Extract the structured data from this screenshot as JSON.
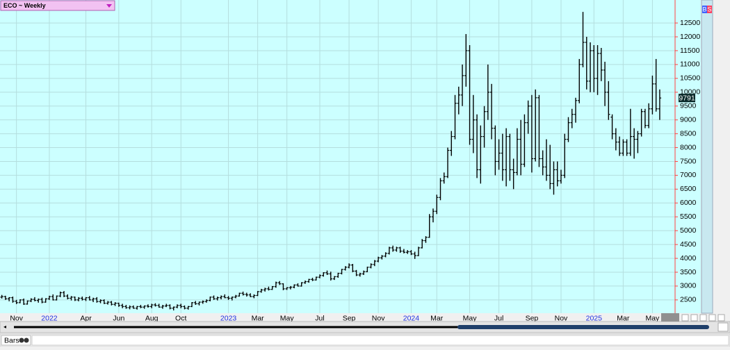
{
  "chart_data": {
    "type": "ohlc",
    "title": "ECO ~ Weekly",
    "color": "#000000",
    "grid": true,
    "ylim": [
      2020,
      13330
    ],
    "yticks": [
      2500,
      3000,
      3500,
      4000,
      4500,
      5000,
      5500,
      6000,
      6500,
      7000,
      7500,
      8000,
      8500,
      9000,
      9500,
      10000,
      10500,
      11000,
      11500,
      12000,
      12500
    ],
    "xlim": [
      -0.5,
      184.2
    ],
    "xticks": [
      {
        "value": 4,
        "label": "Nov"
      },
      {
        "value": 13,
        "label": "2022"
      },
      {
        "value": 23,
        "label": "Apr"
      },
      {
        "value": 32,
        "label": "Jun"
      },
      {
        "value": 41,
        "label": "Aug"
      },
      {
        "value": 49,
        "label": "Oct"
      },
      {
        "value": 62,
        "label": "2023"
      },
      {
        "value": 70,
        "label": "Mar"
      },
      {
        "value": 78,
        "label": "May"
      },
      {
        "value": 87,
        "label": "Jul"
      },
      {
        "value": 95,
        "label": "Sep"
      },
      {
        "value": 103,
        "label": "Nov"
      },
      {
        "value": 112,
        "label": "2024"
      },
      {
        "value": 119,
        "label": "Mar"
      },
      {
        "value": 128,
        "label": "May"
      },
      {
        "value": 136,
        "label": "Jul"
      },
      {
        "value": 145,
        "label": "Sep"
      },
      {
        "value": 153,
        "label": "Nov"
      },
      {
        "value": 162,
        "label": "2025"
      },
      {
        "value": 170,
        "label": "Mar"
      },
      {
        "value": 178,
        "label": "May"
      }
    ],
    "last_price": 9791,
    "ohlc": [
      [
        2600,
        2680,
        2550,
        2620
      ],
      [
        2620,
        2650,
        2500,
        2540
      ],
      [
        2540,
        2600,
        2450,
        2580
      ],
      [
        2580,
        2620,
        2400,
        2450
      ],
      [
        2450,
        2500,
        2350,
        2400
      ],
      [
        2400,
        2520,
        2380,
        2500
      ],
      [
        2500,
        2550,
        2320,
        2350
      ],
      [
        2350,
        2480,
        2330,
        2460
      ],
      [
        2460,
        2560,
        2420,
        2520
      ],
      [
        2520,
        2600,
        2450,
        2480
      ],
      [
        2480,
        2550,
        2400,
        2520
      ],
      [
        2520,
        2580,
        2380,
        2420
      ],
      [
        2420,
        2560,
        2400,
        2540
      ],
      [
        2540,
        2650,
        2500,
        2620
      ],
      [
        2620,
        2700,
        2480,
        2500
      ],
      [
        2500,
        2660,
        2480,
        2640
      ],
      [
        2640,
        2800,
        2600,
        2760
      ],
      [
        2760,
        2820,
        2600,
        2640
      ],
      [
        2640,
        2700,
        2520,
        2560
      ],
      [
        2560,
        2640,
        2480,
        2600
      ],
      [
        2600,
        2620,
        2460,
        2500
      ],
      [
        2500,
        2600,
        2450,
        2560
      ],
      [
        2560,
        2620,
        2480,
        2520
      ],
      [
        2520,
        2600,
        2460,
        2580
      ],
      [
        2580,
        2640,
        2480,
        2500
      ],
      [
        2500,
        2580,
        2420,
        2540
      ],
      [
        2540,
        2600,
        2400,
        2440
      ],
      [
        2440,
        2520,
        2380,
        2480
      ],
      [
        2480,
        2520,
        2350,
        2380
      ],
      [
        2380,
        2460,
        2330,
        2420
      ],
      [
        2420,
        2460,
        2300,
        2340
      ],
      [
        2340,
        2420,
        2280,
        2380
      ],
      [
        2380,
        2400,
        2250,
        2300
      ],
      [
        2300,
        2360,
        2200,
        2260
      ],
      [
        2260,
        2320,
        2180,
        2220
      ],
      [
        2220,
        2300,
        2160,
        2250
      ],
      [
        2250,
        2300,
        2180,
        2200
      ],
      [
        2200,
        2280,
        2150,
        2260
      ],
      [
        2260,
        2320,
        2200,
        2240
      ],
      [
        2240,
        2300,
        2180,
        2280
      ],
      [
        2280,
        2340,
        2220,
        2260
      ],
      [
        2260,
        2360,
        2200,
        2320
      ],
      [
        2320,
        2380,
        2260,
        2300
      ],
      [
        2300,
        2360,
        2220,
        2240
      ],
      [
        2240,
        2320,
        2180,
        2280
      ],
      [
        2280,
        2360,
        2240,
        2300
      ],
      [
        2300,
        2340,
        2160,
        2200
      ],
      [
        2200,
        2260,
        2120,
        2240
      ],
      [
        2240,
        2340,
        2200,
        2300
      ],
      [
        2300,
        2360,
        2200,
        2260
      ],
      [
        2260,
        2300,
        2160,
        2200
      ],
      [
        2200,
        2280,
        2150,
        2260
      ],
      [
        2260,
        2420,
        2240,
        2400
      ],
      [
        2400,
        2460,
        2320,
        2360
      ],
      [
        2360,
        2440,
        2300,
        2420
      ],
      [
        2420,
        2480,
        2360,
        2440
      ],
      [
        2440,
        2520,
        2400,
        2480
      ],
      [
        2480,
        2620,
        2450,
        2600
      ],
      [
        2600,
        2660,
        2500,
        2540
      ],
      [
        2540,
        2620,
        2480,
        2580
      ],
      [
        2580,
        2660,
        2520,
        2620
      ],
      [
        2620,
        2700,
        2560,
        2580
      ],
      [
        2580,
        2640,
        2500,
        2560
      ],
      [
        2560,
        2620,
        2480,
        2600
      ],
      [
        2600,
        2680,
        2560,
        2640
      ],
      [
        2640,
        2760,
        2620,
        2740
      ],
      [
        2740,
        2800,
        2660,
        2700
      ],
      [
        2700,
        2760,
        2620,
        2680
      ],
      [
        2680,
        2740,
        2600,
        2620
      ],
      [
        2620,
        2700,
        2560,
        2660
      ],
      [
        2660,
        2820,
        2640,
        2800
      ],
      [
        2800,
        2900,
        2760,
        2860
      ],
      [
        2860,
        2940,
        2800,
        2900
      ],
      [
        2900,
        2980,
        2840,
        2880
      ],
      [
        2880,
        3000,
        2860,
        2980
      ],
      [
        2980,
        3160,
        2940,
        3120
      ],
      [
        3120,
        3180,
        3040,
        3080
      ],
      [
        3080,
        3100,
        2850,
        2900
      ],
      [
        2900,
        2960,
        2860,
        2940
      ],
      [
        2940,
        3000,
        2880,
        2960
      ],
      [
        2960,
        3060,
        2920,
        3040
      ],
      [
        3040,
        3100,
        2980,
        3000
      ],
      [
        3000,
        3140,
        2980,
        3120
      ],
      [
        3120,
        3200,
        3080,
        3160
      ],
      [
        3160,
        3260,
        3120,
        3240
      ],
      [
        3240,
        3300,
        3180,
        3220
      ],
      [
        3220,
        3340,
        3200,
        3320
      ],
      [
        3320,
        3420,
        3280,
        3380
      ],
      [
        3380,
        3500,
        3340,
        3480
      ],
      [
        3480,
        3560,
        3400,
        3440
      ],
      [
        3440,
        3520,
        3200,
        3260
      ],
      [
        3260,
        3360,
        3220,
        3340
      ],
      [
        3340,
        3480,
        3300,
        3460
      ],
      [
        3460,
        3620,
        3420,
        3600
      ],
      [
        3600,
        3720,
        3560,
        3680
      ],
      [
        3680,
        3820,
        3640,
        3760
      ],
      [
        3760,
        3800,
        3500,
        3540
      ],
      [
        3540,
        3580,
        3360,
        3400
      ],
      [
        3400,
        3480,
        3340,
        3440
      ],
      [
        3440,
        3560,
        3400,
        3520
      ],
      [
        3520,
        3700,
        3500,
        3680
      ],
      [
        3680,
        3820,
        3640,
        3780
      ],
      [
        3780,
        3940,
        3720,
        3900
      ],
      [
        3900,
        4060,
        3860,
        4020
      ],
      [
        4020,
        4120,
        3960,
        4080
      ],
      [
        4080,
        4220,
        4040,
        4180
      ],
      [
        4180,
        4420,
        4140,
        4380
      ],
      [
        4380,
        4460,
        4240,
        4300
      ],
      [
        4300,
        4420,
        4240,
        4380
      ],
      [
        4380,
        4420,
        4200,
        4260
      ],
      [
        4260,
        4340,
        4180,
        4220
      ],
      [
        4220,
        4300,
        4160,
        4240
      ],
      [
        4240,
        4300,
        4120,
        4160
      ],
      [
        4160,
        4240,
        3980,
        4100
      ],
      [
        4100,
        4420,
        4080,
        4380
      ],
      [
        4380,
        4700,
        4360,
        4640
      ],
      [
        4640,
        4800,
        4560,
        4760
      ],
      [
        4760,
        5600,
        4740,
        5500
      ],
      [
        5500,
        5800,
        5300,
        5700
      ],
      [
        5700,
        6300,
        5600,
        6200
      ],
      [
        6200,
        6900,
        6100,
        6800
      ],
      [
        6800,
        7100,
        6700,
        6950
      ],
      [
        6950,
        8000,
        6900,
        7900
      ],
      [
        7900,
        8600,
        7700,
        8400
      ],
      [
        8400,
        9900,
        8300,
        9600
      ],
      [
        9600,
        10200,
        9200,
        9900
      ],
      [
        9900,
        11000,
        9500,
        10600
      ],
      [
        10600,
        12100,
        10200,
        11500
      ],
      [
        11500,
        11700,
        8100,
        8300
      ],
      [
        8300,
        9900,
        7800,
        9000
      ],
      [
        9000,
        9200,
        6900,
        7200
      ],
      [
        7200,
        8800,
        6700,
        8400
      ],
      [
        8400,
        9500,
        8000,
        9300
      ],
      [
        9300,
        11000,
        9000,
        10000
      ],
      [
        10000,
        10300,
        8300,
        8700
      ],
      [
        8700,
        8800,
        7000,
        7500
      ],
      [
        7500,
        8300,
        7200,
        7800
      ],
      [
        7800,
        8500,
        6800,
        7200
      ],
      [
        7200,
        8700,
        6600,
        8400
      ],
      [
        8400,
        8500,
        6800,
        7200
      ],
      [
        7200,
        7600,
        6500,
        7100
      ],
      [
        7100,
        8700,
        7000,
        8300
      ],
      [
        8300,
        9000,
        7000,
        7400
      ],
      [
        7400,
        9200,
        7300,
        8900
      ],
      [
        8900,
        9700,
        8500,
        9500
      ],
      [
        9500,
        9900,
        7100,
        7600
      ],
      [
        7600,
        10100,
        7500,
        9800
      ],
      [
        9800,
        9900,
        7300,
        7600
      ],
      [
        7600,
        7900,
        7000,
        7300
      ],
      [
        7300,
        8300,
        6800,
        7000
      ],
      [
        7000,
        8100,
        6500,
        6700
      ],
      [
        6700,
        7500,
        6300,
        7200
      ],
      [
        7200,
        7500,
        6600,
        6800
      ],
      [
        6800,
        7200,
        6700,
        7000
      ],
      [
        7000,
        8500,
        6900,
        8300
      ],
      [
        8300,
        9100,
        8200,
        8900
      ],
      [
        8900,
        9400,
        8700,
        9200
      ],
      [
        9200,
        9800,
        8900,
        9700
      ],
      [
        9700,
        11200,
        9600,
        11000
      ],
      [
        11000,
        12900,
        10900,
        11800
      ],
      [
        11800,
        12000,
        10100,
        10400
      ],
      [
        10400,
        11800,
        10000,
        11500
      ],
      [
        11500,
        11700,
        10000,
        10500
      ],
      [
        10500,
        11700,
        9900,
        11400
      ],
      [
        11400,
        11600,
        10400,
        10800
      ],
      [
        10800,
        11100,
        9500,
        10000
      ],
      [
        10000,
        10400,
        9000,
        9200
      ],
      [
        9100,
        9200,
        8300,
        8500
      ],
      [
        8500,
        8700,
        7900,
        8200
      ],
      [
        8200,
        8400,
        7700,
        7800
      ],
      [
        7800,
        8300,
        7700,
        8200
      ],
      [
        8200,
        8300,
        7700,
        7800
      ],
      [
        7800,
        9400,
        7700,
        8400
      ],
      [
        8400,
        8700,
        7600,
        8300
      ],
      [
        8300,
        8600,
        7800,
        8500
      ],
      [
        8500,
        9400,
        8400,
        9300
      ],
      [
        9300,
        9400,
        8700,
        8800
      ],
      [
        8800,
        9600,
        8700,
        9400
      ],
      [
        9400,
        10600,
        9200,
        10300
      ],
      [
        10300,
        11200,
        9300,
        9400
      ],
      [
        9400,
        10100,
        9000,
        9791
      ]
    ]
  },
  "ui": {
    "status": "Bars",
    "buy": "B",
    "sell": "S"
  }
}
